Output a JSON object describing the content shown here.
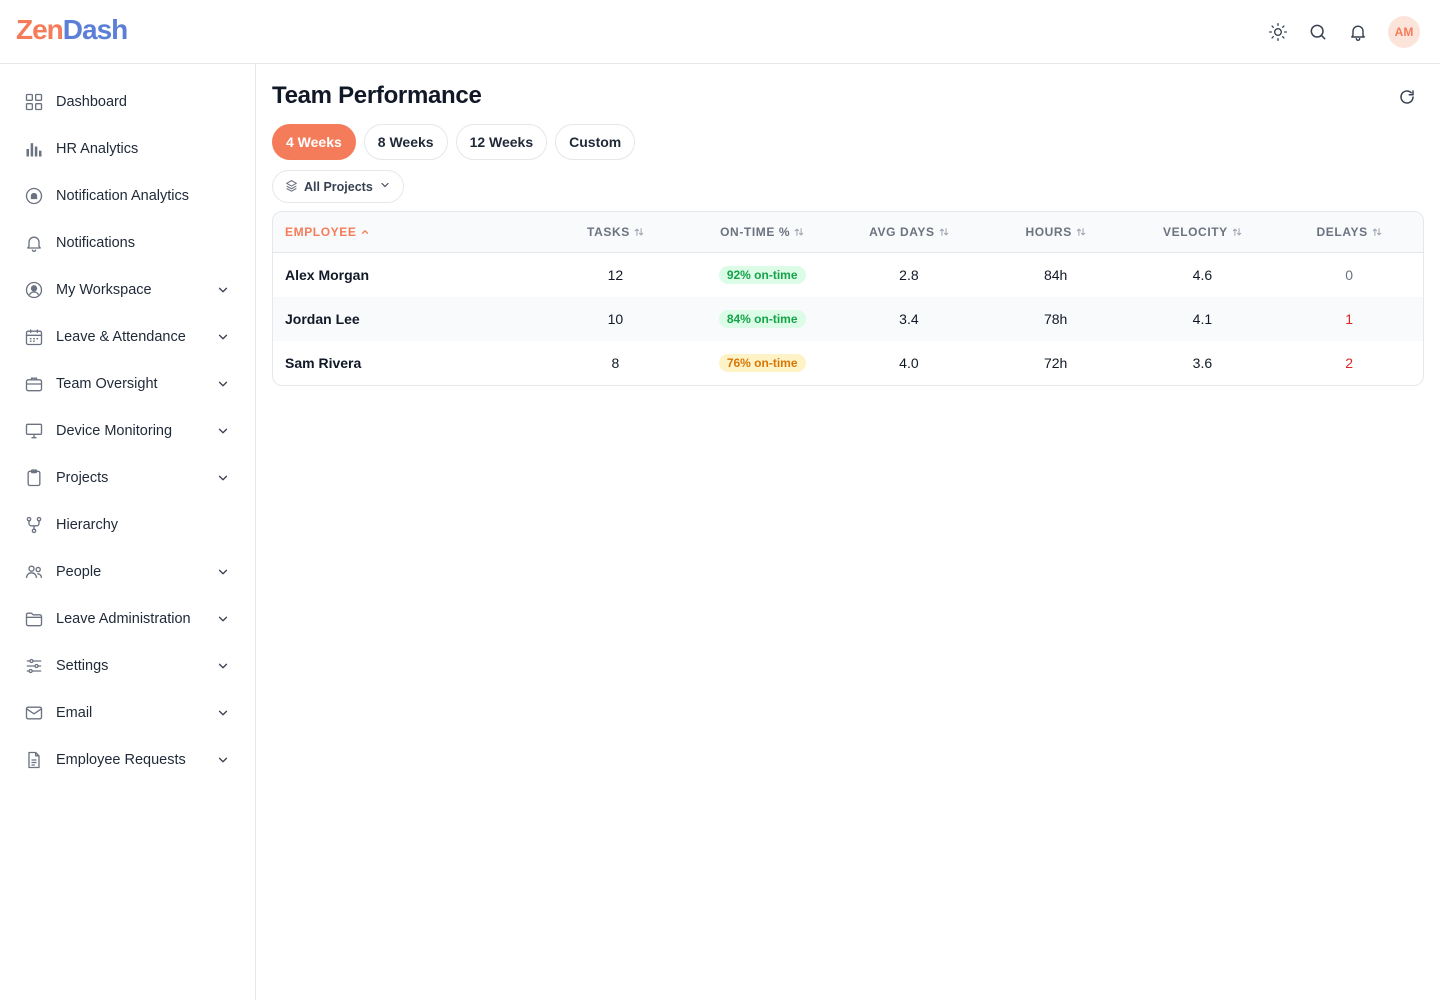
{
  "app": {
    "logo_part1": "Zen",
    "logo_part2": "Dash",
    "user_initials": "AM"
  },
  "colors": {
    "accent": "#f47c5a",
    "brand_blue": "#5b7fd6",
    "success": "#16a34a",
    "warning": "#d97706",
    "danger": "#dc2626"
  },
  "topbar": {
    "icons": [
      "sun-icon",
      "search-icon",
      "bell-icon"
    ]
  },
  "sidebar": {
    "items": [
      {
        "label": "Dashboard",
        "icon": "grid-icon",
        "expandable": false
      },
      {
        "label": "HR Analytics",
        "icon": "bar-chart-icon",
        "expandable": false
      },
      {
        "label": "Notification Analytics",
        "icon": "bell-circle-icon",
        "expandable": false
      },
      {
        "label": "Notifications",
        "icon": "bell-icon",
        "expandable": false
      },
      {
        "label": "My Workspace",
        "icon": "user-circle-icon",
        "expandable": true
      },
      {
        "label": "Leave & Attendance",
        "icon": "calendar-icon",
        "expandable": true
      },
      {
        "label": "Team Oversight",
        "icon": "briefcase-icon",
        "expandable": true
      },
      {
        "label": "Device Monitoring",
        "icon": "monitor-icon",
        "expandable": true
      },
      {
        "label": "Projects",
        "icon": "clipboard-icon",
        "expandable": true
      },
      {
        "label": "Hierarchy",
        "icon": "hierarchy-icon",
        "expandable": false
      },
      {
        "label": "People",
        "icon": "users-icon",
        "expandable": true
      },
      {
        "label": "Leave Administration",
        "icon": "folder-icon",
        "expandable": true
      },
      {
        "label": "Settings",
        "icon": "sliders-icon",
        "expandable": true
      },
      {
        "label": "Email",
        "icon": "mail-icon",
        "expandable": true
      },
      {
        "label": "Employee Requests",
        "icon": "document-icon",
        "expandable": true
      }
    ]
  },
  "main": {
    "title": "Team Performance",
    "tabs": [
      {
        "label": "4 Weeks",
        "active": true
      },
      {
        "label": "8 Weeks",
        "active": false
      },
      {
        "label": "12 Weeks",
        "active": false
      },
      {
        "label": "Custom",
        "active": false
      }
    ],
    "filter": {
      "label": "All Projects"
    },
    "table": {
      "columns": [
        "EMPLOYEE",
        "TASKS",
        "ON-TIME %",
        "AVG DAYS",
        "HOURS",
        "VELOCITY",
        "DELAYS"
      ],
      "rows": [
        {
          "employee": "Alex Morgan",
          "tasks": "12",
          "on_time": "92% on-time",
          "on_time_status": "green",
          "avg_days": "2.8",
          "hours": "84h",
          "velocity": "4.6",
          "delays": "0"
        },
        {
          "employee": "Jordan Lee",
          "tasks": "10",
          "on_time": "84% on-time",
          "on_time_status": "green",
          "avg_days": "3.4",
          "hours": "78h",
          "velocity": "4.1",
          "delays": "1"
        },
        {
          "employee": "Sam Rivera",
          "tasks": "8",
          "on_time": "76% on-time",
          "on_time_status": "amber",
          "avg_days": "4.0",
          "hours": "72h",
          "velocity": "3.6",
          "delays": "2"
        }
      ]
    }
  }
}
